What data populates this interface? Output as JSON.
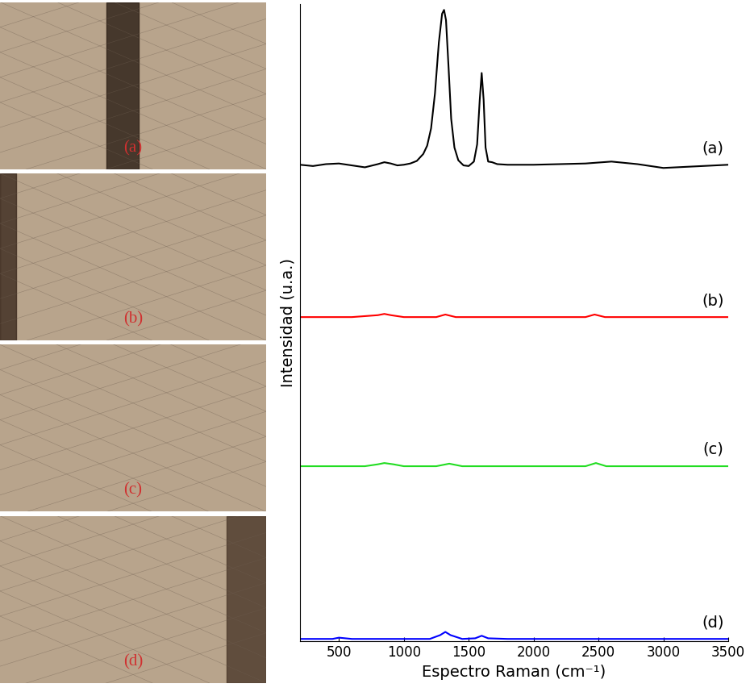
{
  "chart_data": {
    "type": "line",
    "x_label": "Espectro Raman (cm⁻¹)",
    "y_label": "Intensidad (u.a.)",
    "xlim": [
      200,
      3500
    ],
    "xticks": [
      500,
      1000,
      1500,
      2000,
      2500,
      3000,
      3500
    ],
    "ylim": [
      0,
      100
    ],
    "tick_labels": "x",
    "grid": false,
    "series": [
      {
        "name": "(a)",
        "color": "#000000",
        "x": [
          200,
          300,
          400,
          500,
          600,
          700,
          800,
          850,
          900,
          950,
          1000,
          1050,
          1100,
          1150,
          1180,
          1210,
          1240,
          1270,
          1295,
          1310,
          1325,
          1345,
          1365,
          1390,
          1420,
          1460,
          1500,
          1540,
          1565,
          1585,
          1600,
          1615,
          1630,
          1650,
          1680,
          1720,
          1800,
          2000,
          2200,
          2400,
          2600,
          2800,
          3000,
          3200,
          3400,
          3500
        ],
        "values": [
          74.8,
          74.6,
          74.9,
          75.0,
          74.7,
          74.4,
          74.9,
          75.2,
          75.0,
          74.7,
          74.8,
          75.0,
          75.4,
          76.5,
          77.8,
          80.5,
          86.0,
          94.0,
          98.5,
          99.1,
          97.5,
          90.0,
          82.0,
          77.5,
          75.5,
          74.7,
          74.6,
          75.3,
          78.0,
          85.0,
          89.2,
          85.0,
          77.5,
          75.3,
          75.2,
          74.9,
          74.8,
          74.8,
          74.9,
          75.0,
          75.3,
          74.9,
          74.3,
          74.5,
          74.7,
          74.8
        ]
      },
      {
        "name": "(b)",
        "color": "#ff0000",
        "x": [
          200,
          600,
          800,
          850,
          900,
          1000,
          1250,
          1320,
          1400,
          2400,
          2470,
          2550,
          3500
        ],
        "values": [
          50.9,
          50.9,
          51.2,
          51.4,
          51.2,
          50.9,
          50.9,
          51.3,
          50.9,
          50.9,
          51.3,
          50.9,
          50.9
        ]
      },
      {
        "name": "(c)",
        "color": "#22dd22",
        "x": [
          200,
          700,
          800,
          850,
          920,
          1000,
          1250,
          1350,
          1450,
          2400,
          2480,
          2560,
          3500
        ],
        "values": [
          27.5,
          27.5,
          27.8,
          28.0,
          27.8,
          27.5,
          27.5,
          27.9,
          27.5,
          27.5,
          28.0,
          27.5,
          27.5
        ]
      },
      {
        "name": "(d)",
        "color": "#0000ff",
        "x": [
          200,
          450,
          500,
          600,
          1200,
          1280,
          1320,
          1360,
          1450,
          1550,
          1600,
          1650,
          1800,
          3500
        ],
        "values": [
          0.4,
          0.4,
          0.6,
          0.4,
          0.4,
          1.0,
          1.5,
          1.0,
          0.4,
          0.5,
          0.9,
          0.5,
          0.4,
          0.4
        ]
      }
    ]
  },
  "images": {
    "labels": [
      "(a)",
      "(b)",
      "(c)",
      "(d)"
    ]
  }
}
